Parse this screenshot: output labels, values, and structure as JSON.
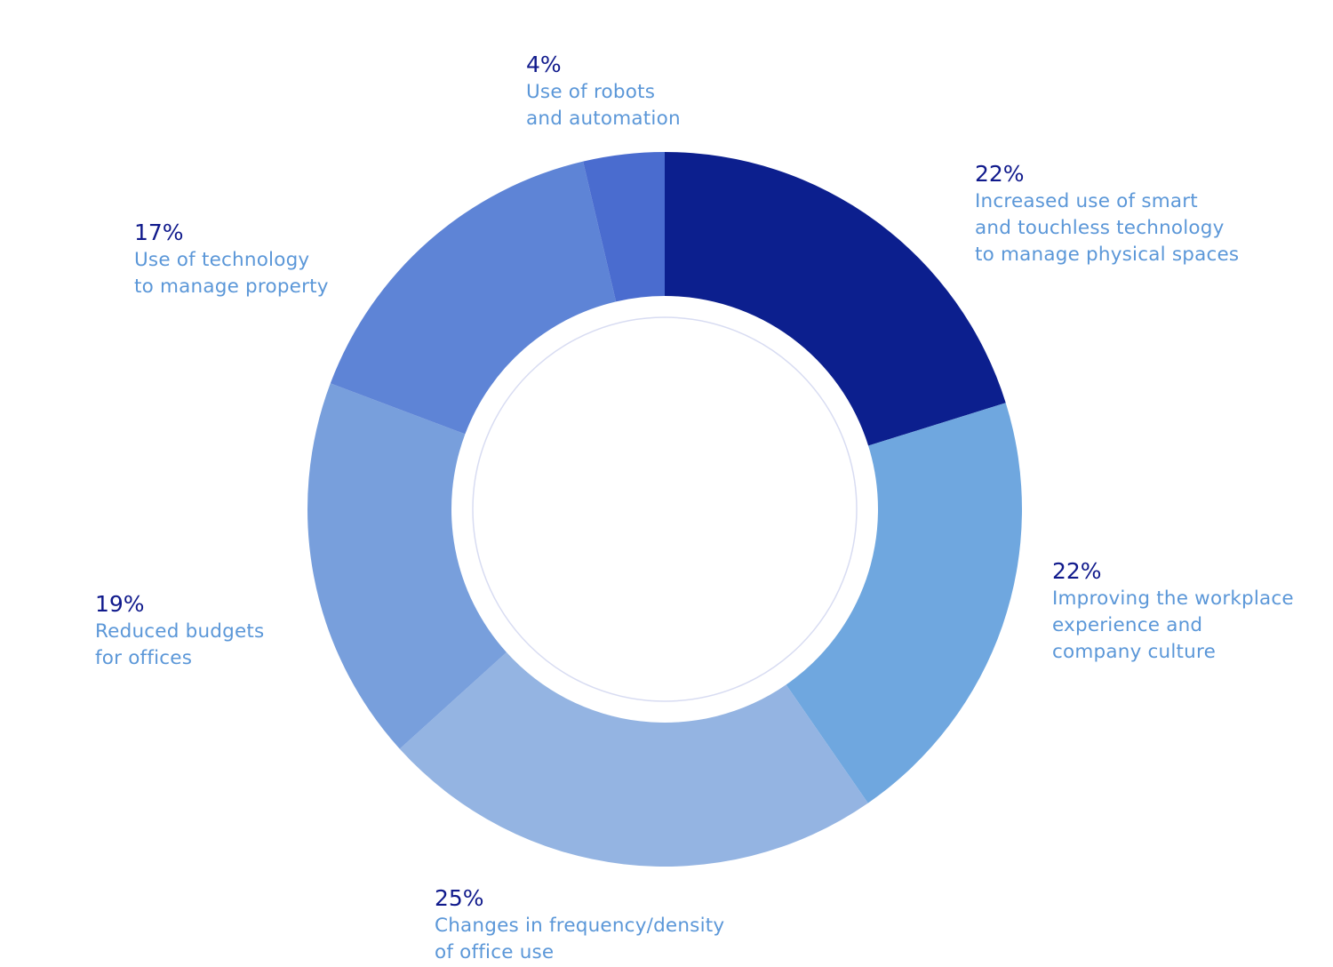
{
  "chart_data": {
    "type": "pie",
    "variant": "donut",
    "slices": [
      {
        "value": 22,
        "value_label": "22%",
        "label": "Increased use of smart\nand touchless technology\nto manage physical spaces",
        "color": "#0c1f8e"
      },
      {
        "value": 22,
        "value_label": "22%",
        "label": "Improving the workplace\nexperience and\ncompany culture",
        "color": "#6fa7df"
      },
      {
        "value": 25,
        "value_label": "25%",
        "label": "Changes in frequency/density\nof office use",
        "color": "#94b4e2"
      },
      {
        "value": 19,
        "value_label": "19%",
        "label": "Reduced budgets\nfor offices",
        "color": "#789fdc"
      },
      {
        "value": 17,
        "value_label": "17%",
        "label": "Use of technology\nto manage property",
        "color": "#5e84d6"
      },
      {
        "value": 4,
        "value_label": "4%",
        "label": "Use of robots\nand automation",
        "color": "#4a6ccf"
      }
    ],
    "label_color_value": "#101a8c",
    "label_color_text": "#5b97d8",
    "inner_ring_color": "#d8dcf2"
  }
}
